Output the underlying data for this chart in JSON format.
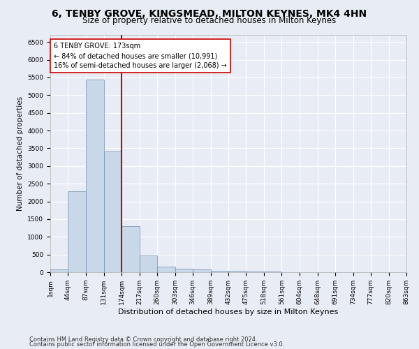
{
  "title": "6, TENBY GROVE, KINGSMEAD, MILTON KEYNES, MK4 4HN",
  "subtitle": "Size of property relative to detached houses in Milton Keynes",
  "xlabel": "Distribution of detached houses by size in Milton Keynes",
  "ylabel": "Number of detached properties",
  "footnote1": "Contains HM Land Registry data © Crown copyright and database right 2024.",
  "footnote2": "Contains public sector information licensed under the Open Government Licence v3.0.",
  "annotation_line1": "6 TENBY GROVE: 173sqm",
  "annotation_line2": "← 84% of detached houses are smaller (10,991)",
  "annotation_line3": "16% of semi-detached houses are larger (2,068) →",
  "bar_color": "#c8d8e8",
  "bar_edge_color": "#7090b0",
  "vline_color": "#cc0000",
  "vline_x": 174,
  "bin_edges": [
    1,
    44,
    87,
    131,
    174,
    217,
    260,
    303,
    346,
    389,
    432,
    475,
    518,
    561,
    604,
    648,
    691,
    734,
    777,
    820,
    863
  ],
  "bar_heights": [
    70,
    2280,
    5430,
    3400,
    1300,
    480,
    165,
    90,
    75,
    45,
    35,
    20,
    10,
    5,
    5,
    3,
    2,
    2,
    1,
    1
  ],
  "ylim": [
    0,
    6700
  ],
  "yticks": [
    0,
    500,
    1000,
    1500,
    2000,
    2500,
    3000,
    3500,
    4000,
    4500,
    5000,
    5500,
    6000,
    6500
  ],
  "bg_color": "#e8ecf4",
  "axes_bg_color": "#e8ecf4",
  "grid_color": "#ffffff",
  "title_fontsize": 10,
  "subtitle_fontsize": 8.5,
  "xlabel_fontsize": 8,
  "ylabel_fontsize": 7.5,
  "tick_fontsize": 6.5,
  "annotation_fontsize": 7,
  "footnote_fontsize": 6
}
